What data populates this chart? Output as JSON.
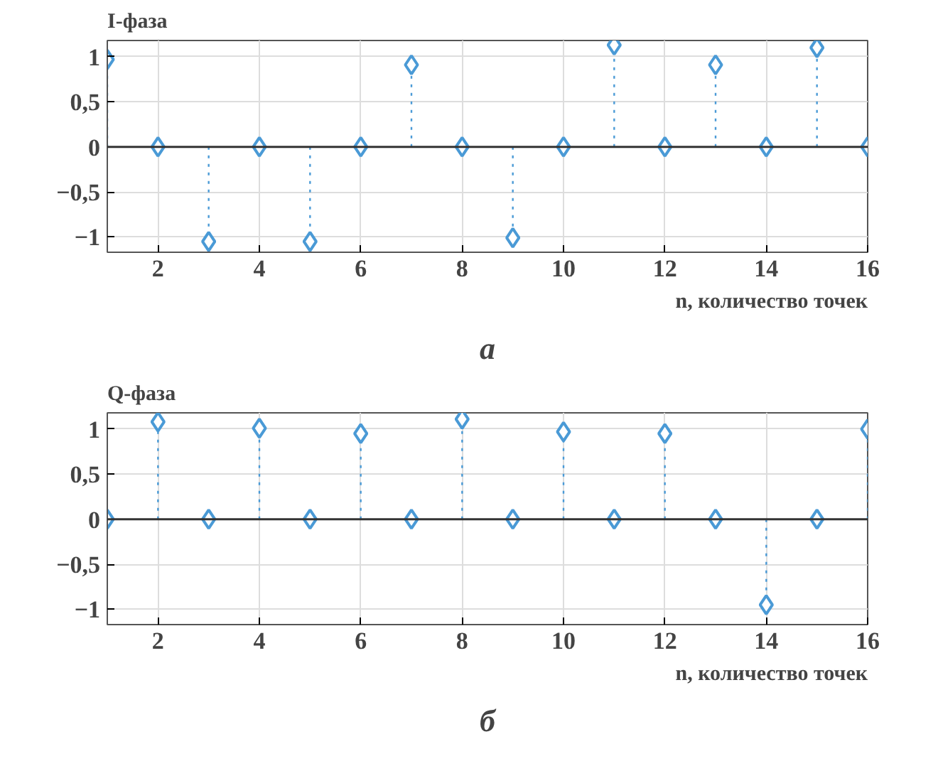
{
  "chart_data": [
    {
      "type": "lollipop",
      "title": "I-фаза",
      "xlabel": "n, количество точек",
      "annotations": [
        "а"
      ],
      "x": [
        1,
        2,
        3,
        4,
        5,
        6,
        7,
        8,
        9,
        10,
        11,
        12,
        13,
        14,
        15,
        16
      ],
      "series": [
        {
          "color": "#4a9ad6",
          "values": [
            0.97,
            0,
            -1.05,
            0,
            -1.05,
            0,
            0.91,
            0,
            -1.01,
            0,
            1.13,
            0,
            0.91,
            0,
            1.1,
            0
          ]
        }
      ],
      "xlim": [
        1,
        16
      ],
      "xticks": [
        2,
        4,
        6,
        8,
        10,
        12,
        14,
        16
      ],
      "ylim": [
        -1.17,
        1.18
      ],
      "yticks": [
        {
          "value": -1,
          "label": "−1"
        },
        {
          "value": -0.5,
          "label": "−0,5"
        },
        0,
        {
          "value": 0.5,
          "label": "0,5"
        },
        1
      ],
      "grid": true,
      "marker": "diamond",
      "line_style": "dotted"
    },
    {
      "type": "lollipop",
      "title": "Q-фаза",
      "xlabel": "n, количество точек",
      "annotations": [
        "б"
      ],
      "x": [
        1,
        2,
        3,
        4,
        5,
        6,
        7,
        8,
        9,
        10,
        11,
        12,
        13,
        14,
        15,
        16
      ],
      "series": [
        {
          "color": "#4a9ad6",
          "values": [
            0,
            1.08,
            0,
            1.01,
            0,
            0.95,
            0,
            1.11,
            0,
            0.97,
            0,
            0.95,
            0,
            -0.95,
            0,
            1.0
          ]
        }
      ],
      "xlim": [
        1,
        16
      ],
      "xticks": [
        2,
        4,
        6,
        8,
        10,
        12,
        14,
        16
      ],
      "ylim": [
        -1.17,
        1.18
      ],
      "yticks": [
        {
          "value": -1,
          "label": "−1"
        },
        {
          "value": -0.5,
          "label": "−0,5"
        },
        0,
        {
          "value": 0.5,
          "label": "0,5"
        },
        1
      ],
      "grid": true,
      "marker": "diamond",
      "line_style": "dotted"
    }
  ]
}
